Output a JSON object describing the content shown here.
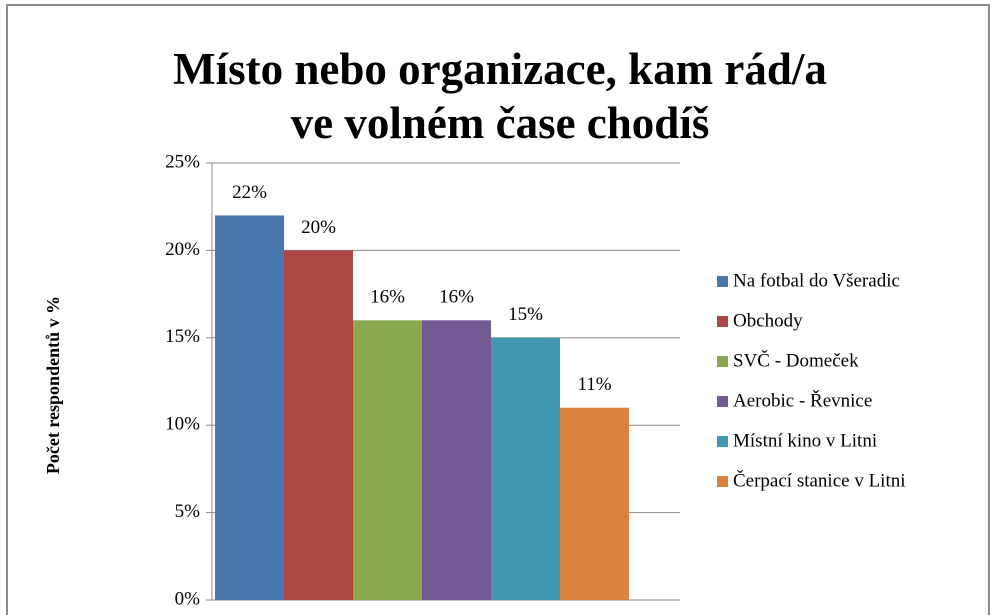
{
  "chart_data": {
    "type": "bar",
    "title": "Místo nebo organizace, kam rád/a ve volném čase chodíš",
    "y_label": "Počet respondentů v %",
    "categories": [
      null
    ],
    "series": [
      {
        "name": "Na fotbal do Všeradic",
        "color": "#4a76ae",
        "values": [
          22
        ],
        "value_labels": [
          "22%"
        ]
      },
      {
        "name": "Obchody",
        "color": "#ae4845",
        "values": [
          20
        ],
        "value_labels": [
          "20%"
        ]
      },
      {
        "name": "SVČ - Domeček",
        "color": "#8ba84f",
        "values": [
          16
        ],
        "value_labels": [
          "16%"
        ]
      },
      {
        "name": "Aerobic - Řevnice",
        "color": "#725a93",
        "values": [
          16
        ],
        "value_labels": [
          "16%"
        ]
      },
      {
        "name": "Místní kino v Litni",
        "color": "#4298b0",
        "values": [
          15
        ],
        "value_labels": [
          "15%"
        ]
      },
      {
        "name": "Čerpací stanice v Litni",
        "color": "#db833d",
        "values": [
          11
        ],
        "value_labels": [
          "11%"
        ]
      }
    ],
    "ylim": [
      0,
      25
    ],
    "yticks": [
      {
        "value": 0,
        "label": "0%"
      },
      {
        "value": 5,
        "label": "5%"
      },
      {
        "value": 10,
        "label": "10%"
      },
      {
        "value": 15,
        "label": "15%"
      },
      {
        "value": 20,
        "label": "20%"
      },
      {
        "value": 25,
        "label": "25%"
      }
    ],
    "grid": true,
    "legend": "right"
  }
}
